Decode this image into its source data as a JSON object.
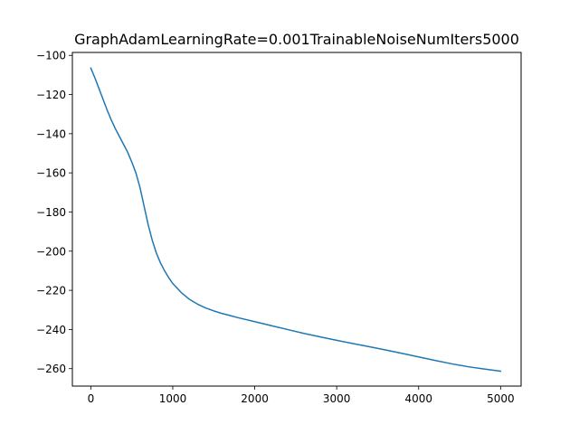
{
  "chart_data": {
    "type": "line",
    "title": "GraphAdamLearningRate=0.001TrainableNoiseNumIters5000",
    "xlabel": "",
    "ylabel": "",
    "xlim": [
      -225,
      5250
    ],
    "ylim": [
      -268.9,
      -98.5
    ],
    "xticks": [
      0,
      1000,
      2000,
      3000,
      4000,
      5000
    ],
    "xtick_labels": [
      "0",
      "1000",
      "2000",
      "3000",
      "4000",
      "5000"
    ],
    "yticks": [
      -100,
      -120,
      -140,
      -160,
      -180,
      -200,
      -220,
      -240,
      -260
    ],
    "ytick_labels": [
      "−100",
      "−120",
      "−140",
      "−160",
      "−180",
      "−200",
      "−220",
      "−240",
      "−260"
    ],
    "grid": false,
    "series": [
      {
        "color": "#1f77b4",
        "x": [
          0,
          50,
          100,
          150,
          200,
          250,
          300,
          350,
          400,
          450,
          500,
          550,
          600,
          650,
          700,
          750,
          800,
          850,
          900,
          950,
          1000,
          1100,
          1200,
          1300,
          1400,
          1500,
          1600,
          1800,
          2000,
          2200,
          2400,
          2600,
          2800,
          3000,
          3200,
          3400,
          3600,
          3800,
          4000,
          4200,
          4400,
          4600,
          4800,
          5000
        ],
        "y": [
          -106.5,
          -111.5,
          -117,
          -122.5,
          -128,
          -133,
          -137.5,
          -141.5,
          -145.5,
          -149.5,
          -154.5,
          -160,
          -167.5,
          -177,
          -186.5,
          -194.5,
          -201,
          -206,
          -210,
          -213.5,
          -216.5,
          -221,
          -224.5,
          -227,
          -229,
          -230.5,
          -231.8,
          -234,
          -236,
          -238,
          -240,
          -242,
          -243.8,
          -245.5,
          -247.2,
          -248.8,
          -250.5,
          -252.2,
          -254,
          -255.8,
          -257.5,
          -259,
          -260.2,
          -261.3
        ]
      }
    ]
  }
}
